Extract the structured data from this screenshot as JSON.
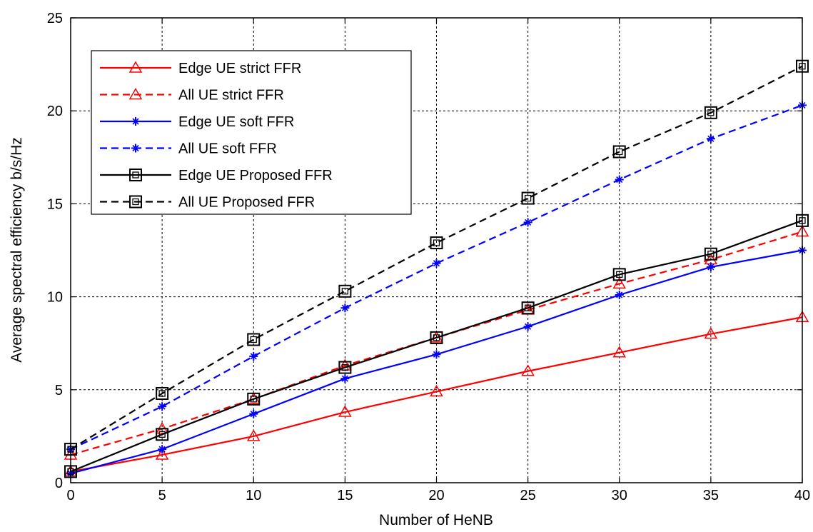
{
  "chart_data": {
    "type": "line",
    "title": "",
    "xlabel": "Number of HeNB",
    "ylabel": "Average spectral efficiency b/s/Hz",
    "xlim": [
      0,
      40
    ],
    "ylim": [
      0,
      25
    ],
    "xticks": [
      0,
      5,
      10,
      15,
      20,
      25,
      30,
      35,
      40
    ],
    "yticks": [
      0,
      5,
      10,
      15,
      20,
      25
    ],
    "grid": true,
    "legend_position": "top-left",
    "x": [
      0,
      5,
      10,
      15,
      20,
      25,
      30,
      35,
      40
    ],
    "series": [
      {
        "name": "Edge UE strict FFR",
        "values": [
          0.6,
          1.5,
          2.5,
          3.8,
          4.9,
          6.0,
          7.0,
          8.0,
          8.9
        ],
        "color": "#ff0000",
        "dash": "solid",
        "marker": "triangle"
      },
      {
        "name": "All UE strict FFR",
        "values": [
          1.5,
          2.9,
          4.5,
          6.3,
          7.8,
          9.3,
          10.7,
          12.0,
          13.5
        ],
        "color": "#ff0000",
        "dash": "dashed",
        "marker": "triangle"
      },
      {
        "name": "Edge UE soft FFR",
        "values": [
          0.5,
          1.8,
          3.7,
          5.6,
          6.9,
          8.4,
          10.1,
          11.6,
          12.5
        ],
        "color": "#0000ff",
        "dash": "solid",
        "marker": "star"
      },
      {
        "name": "All UE soft FFR",
        "values": [
          1.8,
          4.1,
          6.8,
          9.4,
          11.8,
          14.0,
          16.3,
          18.5,
          20.3
        ],
        "color": "#0000ff",
        "dash": "dashed",
        "marker": "star"
      },
      {
        "name": "Edge UE Proposed FFR",
        "values": [
          0.6,
          2.6,
          4.5,
          6.2,
          7.8,
          9.4,
          11.2,
          12.3,
          14.1
        ],
        "color": "#000000",
        "dash": "solid",
        "marker": "square"
      },
      {
        "name": "All UE Proposed FFR",
        "values": [
          1.8,
          4.8,
          7.7,
          10.3,
          12.9,
          15.3,
          17.8,
          19.9,
          22.4
        ],
        "color": "#000000",
        "dash": "dashed",
        "marker": "square"
      }
    ]
  }
}
